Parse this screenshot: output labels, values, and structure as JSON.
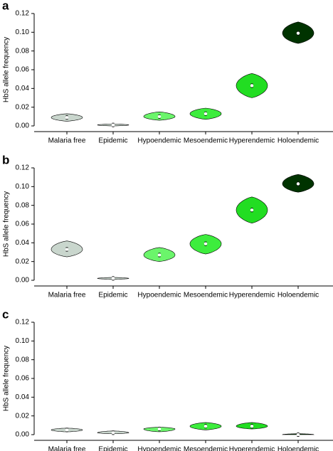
{
  "chart_data": [
    {
      "type": "violin",
      "label": "a",
      "ylabel": "HbS allele frequency",
      "categories": [
        "Malaria free",
        "Epidemic",
        "Hypoendemic",
        "Mesoendemic",
        "Hyperendemic",
        "Holoendemic"
      ],
      "colors": [
        "#c9d6cd",
        "#c9d6cd",
        "#6bf56b",
        "#3ded3d",
        "#22dd22",
        "#003300"
      ],
      "median": [
        0.009,
        0.001,
        0.01,
        0.013,
        0.043,
        0.099
      ],
      "min": [
        0.005,
        0.0,
        0.006,
        0.007,
        0.03,
        0.088
      ],
      "max": [
        0.013,
        0.002,
        0.015,
        0.019,
        0.056,
        0.111
      ],
      "ylim": [
        0,
        0.12
      ],
      "yticks": [
        {
          "value": 0,
          "label": "0.00"
        },
        0.02,
        0.04,
        0.06,
        0.08,
        {
          "value": 0.1,
          "label": "0.10"
        },
        0.12
      ]
    },
    {
      "type": "violin",
      "label": "b",
      "ylabel": "HbS allele frequency",
      "categories": [
        "Malaria free",
        "Epidemic",
        "Hypoendemic",
        "Mesoendemic",
        "Hyperendemic",
        "Holoendemic"
      ],
      "colors": [
        "#c9d6cd",
        "#c9d6cd",
        "#6bf56b",
        "#3ded3d",
        "#22dd22",
        "#003300"
      ],
      "median": [
        0.033,
        0.002,
        0.027,
        0.039,
        0.075,
        0.103
      ],
      "min": [
        0.025,
        0.001,
        0.02,
        0.028,
        0.061,
        0.094
      ],
      "max": [
        0.042,
        0.003,
        0.035,
        0.049,
        0.089,
        0.113
      ],
      "ylim": [
        0,
        0.12
      ],
      "yticks": [
        {
          "value": 0,
          "label": "0.00"
        },
        0.02,
        0.04,
        0.06,
        0.08,
        {
          "value": 0.1,
          "label": "0.10"
        },
        0.12
      ]
    },
    {
      "type": "violin",
      "label": "c",
      "ylabel": "HbS allele frequency",
      "categories": [
        "Malaria free",
        "Epidemic",
        "Hypoendemic",
        "Mesoendemic",
        "Hyperendemic",
        "Holoendemic"
      ],
      "colors": [
        "#c9d6cd",
        "#c9d6cd",
        "#6bf56b",
        "#3ded3d",
        "#22dd22",
        "#003300"
      ],
      "median": [
        0.005,
        0.002,
        0.006,
        0.009,
        0.009,
        0.0
      ],
      "min": [
        0.003,
        0.001,
        0.003,
        0.005,
        0.006,
        0.0
      ],
      "max": [
        0.007,
        0.004,
        0.008,
        0.013,
        0.013,
        0.001
      ],
      "ylim": [
        0,
        0.12
      ],
      "yticks": [
        {
          "value": 0,
          "label": "0.00"
        },
        0.02,
        0.04,
        0.06,
        0.08,
        {
          "value": 0.1,
          "label": "0.10"
        },
        0.12
      ]
    }
  ]
}
